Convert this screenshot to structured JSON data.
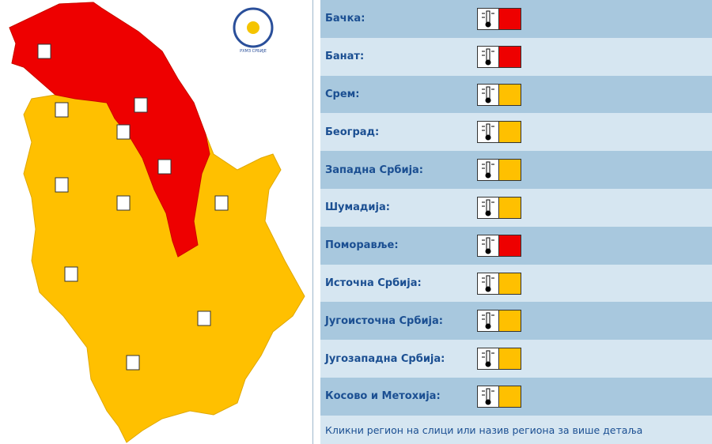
{
  "logo": {
    "caption": "РХМЗ СРБИЈЕ"
  },
  "regions": [
    {
      "name": "Бачка:",
      "color": "#ee0000"
    },
    {
      "name": "Банат:",
      "color": "#ee0000"
    },
    {
      "name": "Срем:",
      "color": "#ffc000"
    },
    {
      "name": "Београд:",
      "color": "#ffc000"
    },
    {
      "name": "Западна Србија:",
      "color": "#ffc000"
    },
    {
      "name": "Шумадија:",
      "color": "#ffc000"
    },
    {
      "name": "Поморавље:",
      "color": "#ee0000"
    },
    {
      "name": "Источна Србија:",
      "color": "#ffc000"
    },
    {
      "name": "Југоисточна Србија:",
      "color": "#ffc000"
    },
    {
      "name": "Југозападна Србија:",
      "color": "#ffc000"
    },
    {
      "name": "Косово и Метохија:",
      "color": "#ffc000"
    }
  ],
  "footer": "Кликни регион на слици или назив региона за више детаља"
}
